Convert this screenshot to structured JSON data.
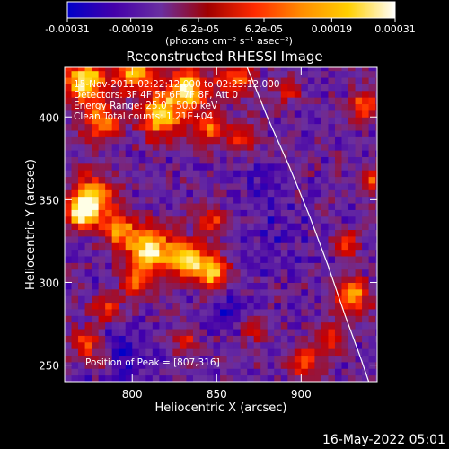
{
  "chart_data": {
    "type": "heatmap",
    "title": "Reconstructed RHESSI Image",
    "xlabel": "Heliocentric X (arcsec)",
    "ylabel": "Heliocentric Y (arcsec)",
    "xlim": [
      760,
      945
    ],
    "ylim": [
      240,
      430
    ],
    "x_ticks": [
      800,
      850,
      900
    ],
    "y_ticks": [
      250,
      300,
      350,
      400
    ],
    "colorbar": {
      "min": -0.00031,
      "max": 0.00031,
      "tick_values": [
        -0.00031,
        -0.00019,
        -6.2e-05,
        6.2e-05,
        0.00019,
        0.00031
      ],
      "tick_labels": [
        "-0.00031",
        "-0.00019",
        "-6.2e-05",
        "6.2e-05",
        "0.00019",
        "0.00031"
      ],
      "unit_label": "(photons cm⁻² s⁻¹ asec⁻²)",
      "colors": [
        "#0000c8",
        "#4400aa",
        "#6a2fa0",
        "#a00000",
        "#ff2a00",
        "#ff8c00",
        "#ffd000",
        "#ffffff"
      ]
    },
    "grid": false,
    "annotations": [
      "15-Nov-2011 02:22:12.000 to 02:23:12.000",
      "Detectors: 3F 4F 5F 6F 7F 8F, Att 0",
      "Energy Range: 25.0 - 50.0 keV",
      "Clean     Total counts: 1.21E+04"
    ],
    "peak_label": "Position of Peak = [807,316]",
    "peak_position": [
      807,
      316
    ],
    "limb_curve": [
      [
        868,
        430
      ],
      [
        880,
        400
      ],
      [
        893,
        370
      ],
      [
        905,
        340
      ],
      [
        916,
        310
      ],
      [
        926,
        280
      ],
      [
        935,
        255
      ],
      [
        940,
        240
      ]
    ],
    "hot_regions": [
      [
        770,
        420,
        9,
        1.0
      ],
      [
        800,
        425,
        8,
        0.8
      ],
      [
        830,
        415,
        9,
        0.9
      ],
      [
        860,
        422,
        7,
        0.7
      ],
      [
        780,
        395,
        8,
        0.7
      ],
      [
        815,
        398,
        9,
        0.8
      ],
      [
        845,
        392,
        7,
        0.6
      ],
      [
        775,
        350,
        9,
        0.8
      ],
      [
        768,
        340,
        6,
        0.9
      ],
      [
        790,
        330,
        7,
        0.7
      ],
      [
        808,
        318,
        9,
        1.0
      ],
      [
        830,
        312,
        8,
        0.9
      ],
      [
        845,
        305,
        7,
        0.8
      ],
      [
        800,
        298,
        6,
        0.6
      ],
      [
        782,
        282,
        6,
        0.5
      ],
      [
        770,
        262,
        6,
        0.6
      ],
      [
        845,
        335,
        6,
        0.5
      ],
      [
        865,
        385,
        6,
        0.5
      ],
      [
        928,
        290,
        7,
        0.8
      ],
      [
        925,
        322,
        5,
        0.6
      ],
      [
        915,
        265,
        6,
        0.5
      ],
      [
        900,
        250,
        6,
        0.6
      ],
      [
        935,
        405,
        6,
        0.6
      ],
      [
        940,
        360,
        5,
        0.5
      ],
      [
        890,
        415,
        5,
        0.5
      ],
      [
        780,
        250,
        5,
        0.5
      ],
      [
        830,
        262,
        5,
        0.4
      ],
      [
        870,
        270,
        5,
        0.4
      ]
    ],
    "cold_regions": [
      [
        790,
        252,
        12,
        0.9
      ],
      [
        880,
        325,
        14,
        0.4
      ],
      [
        870,
        360,
        10,
        0.4
      ],
      [
        855,
        280,
        9,
        0.5
      ]
    ],
    "timestamp": "16-May-2022 05:01"
  }
}
